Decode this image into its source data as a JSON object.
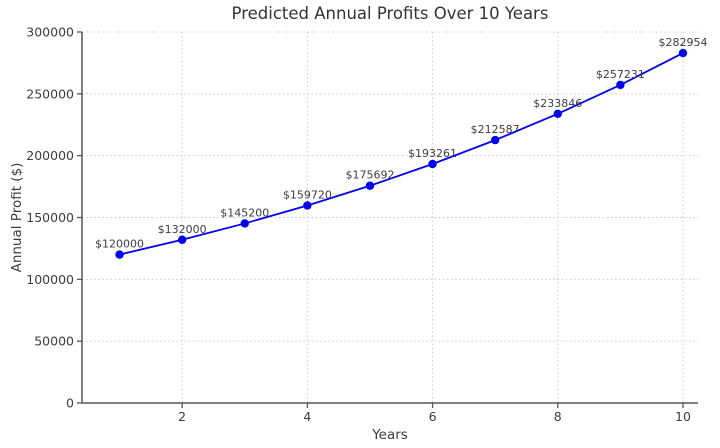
{
  "figure": {
    "background": "#ffffff"
  },
  "chart_data": {
    "type": "line",
    "title": "Predicted Annual Profits Over 10 Years",
    "xlabel": "Years",
    "ylabel": "Annual Profit ($)",
    "x": [
      1,
      2,
      3,
      4,
      5,
      6,
      7,
      8,
      9,
      10
    ],
    "values": [
      120000,
      132000,
      145200,
      159720,
      175692,
      193261,
      212587,
      233846,
      257231,
      282954
    ],
    "point_labels": [
      "$120000",
      "$132000",
      "$145200",
      "$159720",
      "$175692",
      "$193261",
      "$212587",
      "$233846",
      "$257231",
      "$282954"
    ],
    "xlim": [
      0.4,
      10.24
    ],
    "ylim": [
      0,
      300000
    ],
    "xticks": [
      2,
      4,
      6,
      8,
      10
    ],
    "xtick_labels": [
      "2",
      "4",
      "6",
      "8",
      "10"
    ],
    "yticks": [
      0,
      50000,
      100000,
      150000,
      200000,
      250000,
      300000
    ],
    "ytick_labels": [
      "0",
      "50000",
      "100000",
      "150000",
      "200000",
      "250000",
      "300000"
    ],
    "grid": true,
    "grid_style": "dotted",
    "legend_position": "none",
    "colors": {
      "line": "#0000ff",
      "marker": "#0000ff",
      "grid": "#c9c9c9",
      "axis": "#555555",
      "text": "#3d3d3d"
    }
  }
}
